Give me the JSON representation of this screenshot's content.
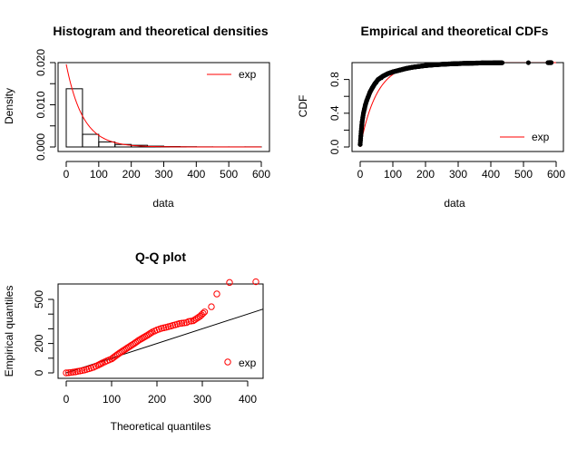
{
  "colors": {
    "fit": "#ff0000",
    "axis": "#000000",
    "empirical": "#000000"
  },
  "chart_data": [
    {
      "type": "bar",
      "title": "Histogram and theoretical densities",
      "xlabel": "data",
      "ylabel": "Density",
      "xlim": [
        0,
        600
      ],
      "ylim": [
        0,
        0.02
      ],
      "xticks": [
        "0",
        "100",
        "200",
        "300",
        "400",
        "500",
        "600"
      ],
      "yticks": [
        "0.000",
        "0.010",
        "0.020"
      ],
      "bins": [
        {
          "x0": 0,
          "x1": 50,
          "density": 0.0138
        },
        {
          "x0": 50,
          "x1": 100,
          "density": 0.003
        },
        {
          "x0": 100,
          "x1": 150,
          "density": 0.0012
        },
        {
          "x0": 150,
          "x1": 200,
          "density": 0.0006
        },
        {
          "x0": 200,
          "x1": 250,
          "density": 0.0004
        },
        {
          "x0": 250,
          "x1": 300,
          "density": 0.0002
        },
        {
          "x0": 300,
          "x1": 350,
          "density": 0.0001
        },
        {
          "x0": 350,
          "x1": 400,
          "density": 6e-05
        },
        {
          "x0": 400,
          "x1": 450,
          "density": 3e-05
        },
        {
          "x0": 450,
          "x1": 500,
          "density": 2e-05
        },
        {
          "x0": 500,
          "x1": 550,
          "density": 2e-05
        },
        {
          "x0": 550,
          "x1": 600,
          "density": 3e-05
        }
      ],
      "fit_curve": {
        "name": "exp",
        "rate": 0.0196
      },
      "legend": {
        "label": "exp",
        "position": "top-right"
      }
    },
    {
      "type": "scatter",
      "title": "Empirical and theoretical CDFs",
      "xlabel": "data",
      "ylabel": "CDF",
      "xlim": [
        0,
        600
      ],
      "ylim": [
        0,
        1
      ],
      "xticks": [
        "0",
        "100",
        "200",
        "300",
        "400",
        "500",
        "600"
      ],
      "yticks": [
        "0.0",
        "0.4",
        "0.8"
      ],
      "empirical_points": [
        [
          0,
          0.03
        ],
        [
          1,
          0.08
        ],
        [
          2,
          0.13
        ],
        [
          3,
          0.18
        ],
        [
          4,
          0.22
        ],
        [
          5,
          0.26
        ],
        [
          6,
          0.3
        ],
        [
          8,
          0.35
        ],
        [
          10,
          0.4
        ],
        [
          13,
          0.45
        ],
        [
          16,
          0.5
        ],
        [
          20,
          0.55
        ],
        [
          25,
          0.6
        ],
        [
          30,
          0.65
        ],
        [
          37,
          0.7
        ],
        [
          45,
          0.75
        ],
        [
          55,
          0.8
        ],
        [
          70,
          0.84
        ],
        [
          85,
          0.87
        ],
        [
          100,
          0.89
        ],
        [
          120,
          0.91
        ],
        [
          140,
          0.93
        ],
        [
          160,
          0.945
        ],
        [
          180,
          0.955
        ],
        [
          200,
          0.965
        ],
        [
          230,
          0.975
        ],
        [
          260,
          0.982
        ],
        [
          290,
          0.987
        ],
        [
          320,
          0.991
        ],
        [
          350,
          0.994
        ],
        [
          375,
          0.996
        ],
        [
          410,
          0.997
        ],
        [
          435,
          0.998
        ],
        [
          515,
          0.999
        ],
        [
          575,
          0.9995
        ],
        [
          585,
          1.0
        ]
      ],
      "fit_curve": {
        "name": "exp",
        "rate": 0.0196
      },
      "legend": {
        "label": "exp",
        "position": "bottom-right"
      }
    },
    {
      "type": "scatter",
      "title": "Q-Q plot",
      "xlabel": "Theoretical quantiles",
      "ylabel": "Empirical quantiles",
      "xlim": [
        0,
        430
      ],
      "ylim": [
        0,
        620
      ],
      "xticks": [
        "0",
        "100",
        "200",
        "300",
        "400"
      ],
      "yticks": [
        "0",
        "200",
        "500"
      ],
      "points": [
        [
          0,
          0
        ],
        [
          5,
          1
        ],
        [
          10,
          3
        ],
        [
          15,
          5
        ],
        [
          20,
          7
        ],
        [
          30,
          13
        ],
        [
          40,
          19
        ],
        [
          50,
          28
        ],
        [
          60,
          38
        ],
        [
          70,
          52
        ],
        [
          80,
          68
        ],
        [
          90,
          82
        ],
        [
          100,
          95
        ],
        [
          110,
          118
        ],
        [
          120,
          140
        ],
        [
          130,
          160
        ],
        [
          140,
          180
        ],
        [
          150,
          200
        ],
        [
          160,
          222
        ],
        [
          170,
          240
        ],
        [
          180,
          258
        ],
        [
          190,
          278
        ],
        [
          200,
          292
        ],
        [
          210,
          303
        ],
        [
          220,
          310
        ],
        [
          230,
          318
        ],
        [
          240,
          327
        ],
        [
          250,
          336
        ],
        [
          260,
          340
        ],
        [
          265,
          342
        ],
        [
          270,
          350
        ],
        [
          280,
          355
        ],
        [
          295,
          385
        ],
        [
          305,
          415
        ],
        [
          320,
          450
        ],
        [
          332,
          537
        ],
        [
          360,
          615
        ],
        [
          418,
          620
        ]
      ],
      "reference_line": {
        "slope": 1,
        "intercept": 0
      },
      "legend": {
        "label": "exp",
        "position": "bottom-right"
      }
    }
  ]
}
